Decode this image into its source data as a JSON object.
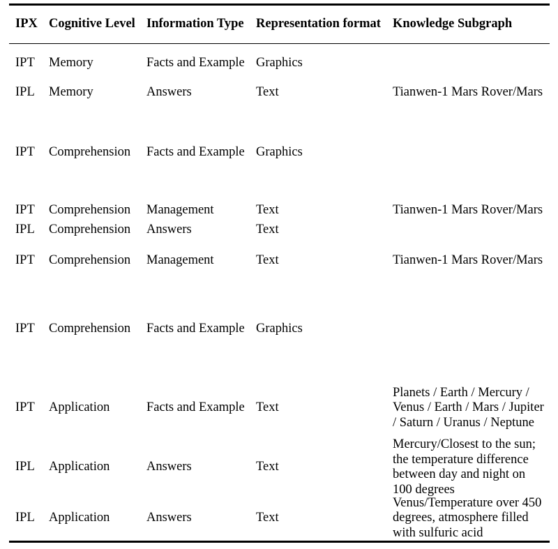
{
  "table": {
    "columns": {
      "ipx": "IPX",
      "cognitive_level": "Cognitive Level",
      "information_type": "Information Type",
      "representation_format": "Representation format",
      "knowledge_subgraph": "Knowledge Subgraph"
    },
    "rows": [
      {
        "ipx": "IPT",
        "cognitive_level": "Memory",
        "information_type": "Facts and Example",
        "representation_format": "Graphics",
        "knowledge_subgraph": ""
      },
      {
        "ipx": "IPL",
        "cognitive_level": "Memory",
        "information_type": "Answers",
        "representation_format": "Text",
        "knowledge_subgraph": "Tianwen-1 Mars Rover/Mars"
      },
      {
        "ipx": "IPT",
        "cognitive_level": "Comprehension",
        "information_type": "Facts and Example",
        "representation_format": "Graphics",
        "knowledge_subgraph": ""
      },
      {
        "ipx": "IPT",
        "cognitive_level": "Comprehension",
        "information_type": "Management",
        "representation_format": "Text",
        "knowledge_subgraph": "Tianwen-1 Mars Rover/Mars"
      },
      {
        "ipx": "IPL",
        "cognitive_level": "Comprehension",
        "information_type": "Answers",
        "representation_format": "Text",
        "knowledge_subgraph": ""
      },
      {
        "ipx": "IPT",
        "cognitive_level": "Comprehension",
        "information_type": "Management",
        "representation_format": "Text",
        "knowledge_subgraph": "Tianwen-1 Mars Rover/Mars"
      },
      {
        "ipx": "IPT",
        "cognitive_level": "Comprehension",
        "information_type": "Facts and Example",
        "representation_format": "Graphics",
        "knowledge_subgraph": ""
      },
      {
        "ipx": "IPT",
        "cognitive_level": "Application",
        "information_type": "Facts and Example",
        "representation_format": "Text",
        "knowledge_subgraph": "Planets / Earth / Mercury /\nVenus / Earth / Mars / Jupiter\n/ Saturn / Uranus / Neptune"
      },
      {
        "ipx": "IPL",
        "cognitive_level": "Application",
        "information_type": "Answers",
        "representation_format": "Text",
        "knowledge_subgraph": "Mercury/Closest to the sun;\nthe temperature difference\nbetween day and night on\n100 degrees"
      },
      {
        "ipx": "IPL",
        "cognitive_level": "Application",
        "information_type": "Answers",
        "representation_format": "Text",
        "knowledge_subgraph": "Venus/Temperature over 450\ndegrees, atmosphere filled\nwith sulfuric acid"
      }
    ]
  }
}
